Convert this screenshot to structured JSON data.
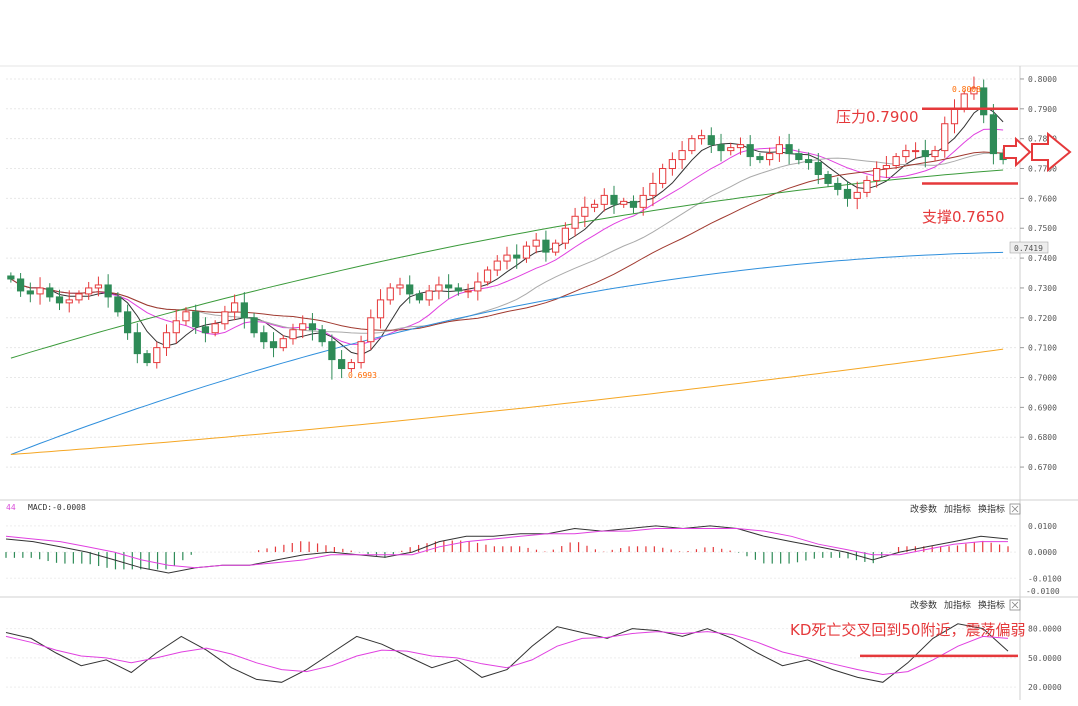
{
  "panels": {
    "macd": {
      "title": "MACD:-0.0008",
      "count": "44",
      "tools": [
        "改参数",
        "加指标",
        "换指标"
      ],
      "ticks": [
        "0.0100",
        "0.0000",
        "-0.0100",
        "-0.0100"
      ]
    },
    "kd": {
      "tools": [
        "改参数",
        "加指标",
        "换指标"
      ],
      "ticks": [
        "80.0000",
        "50.0000",
        "20.0000"
      ]
    }
  },
  "annotations": {
    "resistance": "压力0.7900",
    "support": "支撑0.7650",
    "kd_note": "KD死亡交叉回到50附近，震荡偏弱",
    "high_label": "0.8008",
    "low_label": "0.6993",
    "current_price": "0.7419"
  },
  "colors": {
    "up": "#e5393b",
    "down": "#2e8b57",
    "ma5": "#333333",
    "ma10": "#e040e0",
    "ma20": "#aaaaaa",
    "ma30": "#a0392f",
    "ma60": "#3a9a3a",
    "ma120": "#2f8fdc",
    "ma250": "#f5a623",
    "annotation": "#e5393b"
  },
  "chart_data": [
    {
      "type": "candlestick",
      "yticks": [
        "0.8000",
        "0.7900",
        "0.7800",
        "0.7700",
        "0.7600",
        "0.7500",
        "0.7400",
        "0.7300",
        "0.7200",
        "0.7100",
        "0.7000",
        "0.6900",
        "0.6800",
        "0.6700"
      ],
      "ylim": [
        0.665,
        0.803
      ],
      "levels": {
        "resistance": 0.79,
        "support": 0.765,
        "current": 0.7419
      },
      "high": 0.8008,
      "low": 0.6993,
      "close": [
        0.733,
        0.729,
        0.728,
        0.73,
        0.727,
        0.725,
        0.726,
        0.728,
        0.73,
        0.731,
        0.727,
        0.722,
        0.715,
        0.708,
        0.705,
        0.71,
        0.715,
        0.719,
        0.722,
        0.717,
        0.715,
        0.718,
        0.722,
        0.725,
        0.72,
        0.715,
        0.712,
        0.71,
        0.713,
        0.716,
        0.718,
        0.716,
        0.712,
        0.706,
        0.703,
        0.705,
        0.712,
        0.72,
        0.726,
        0.73,
        0.731,
        0.728,
        0.726,
        0.729,
        0.731,
        0.73,
        0.729,
        0.729,
        0.732,
        0.736,
        0.739,
        0.741,
        0.74,
        0.744,
        0.746,
        0.742,
        0.745,
        0.75,
        0.754,
        0.757,
        0.758,
        0.761,
        0.758,
        0.759,
        0.757,
        0.761,
        0.765,
        0.77,
        0.773,
        0.776,
        0.78,
        0.781,
        0.778,
        0.776,
        0.777,
        0.778,
        0.774,
        0.773,
        0.775,
        0.778,
        0.775,
        0.773,
        0.772,
        0.768,
        0.765,
        0.763,
        0.76,
        0.762,
        0.766,
        0.77,
        0.771,
        0.774,
        0.776,
        0.776,
        0.774,
        0.776,
        0.785,
        0.79,
        0.795,
        0.797,
        0.788,
        0.775,
        0.773
      ]
    },
    {
      "type": "line",
      "name": "MACD",
      "ylim": [
        -0.016,
        0.013
      ],
      "series": [
        {
          "name": "DIF",
          "values": [
            0.005,
            0.004,
            0.002,
            0.0,
            -0.003,
            -0.006,
            -0.008,
            -0.006,
            -0.005,
            -0.005,
            -0.003,
            -0.001,
            0.0,
            -0.001,
            -0.002,
            0.0,
            0.004,
            0.006,
            0.006,
            0.007,
            0.007,
            0.009,
            0.008,
            0.009,
            0.01,
            0.009,
            0.01,
            0.009,
            0.006,
            0.004,
            0.002,
            0.0,
            -0.003,
            0.0,
            0.002,
            0.004,
            0.006,
            0.005
          ]
        },
        {
          "name": "DEA",
          "values": [
            0.006,
            0.005,
            0.004,
            0.002,
            0.0,
            -0.003,
            -0.005,
            -0.006,
            -0.005,
            -0.005,
            -0.004,
            -0.003,
            -0.001,
            -0.001,
            -0.001,
            -0.001,
            0.002,
            0.004,
            0.005,
            0.006,
            0.007,
            0.007,
            0.008,
            0.008,
            0.009,
            0.009,
            0.009,
            0.009,
            0.008,
            0.006,
            0.003,
            0.001,
            -0.001,
            -0.001,
            0.001,
            0.003,
            0.004,
            0.004
          ]
        }
      ]
    },
    {
      "type": "line",
      "name": "KD",
      "ylim": [
        13,
        95
      ],
      "series": [
        {
          "name": "K",
          "values": [
            76,
            70,
            55,
            42,
            48,
            35,
            55,
            72,
            58,
            40,
            28,
            25,
            38,
            55,
            72,
            64,
            52,
            40,
            48,
            30,
            38,
            62,
            82,
            76,
            70,
            80,
            78,
            72,
            80,
            70,
            55,
            42,
            48,
            38,
            30,
            25,
            45,
            70,
            85,
            80,
            57
          ]
        },
        {
          "name": "D",
          "values": [
            72,
            66,
            58,
            52,
            50,
            45,
            50,
            56,
            60,
            54,
            45,
            38,
            36,
            42,
            52,
            58,
            57,
            52,
            50,
            44,
            40,
            48,
            62,
            70,
            71,
            75,
            77,
            75,
            77,
            74,
            66,
            56,
            50,
            44,
            38,
            33,
            36,
            48,
            62,
            72,
            70
          ]
        }
      ]
    }
  ]
}
